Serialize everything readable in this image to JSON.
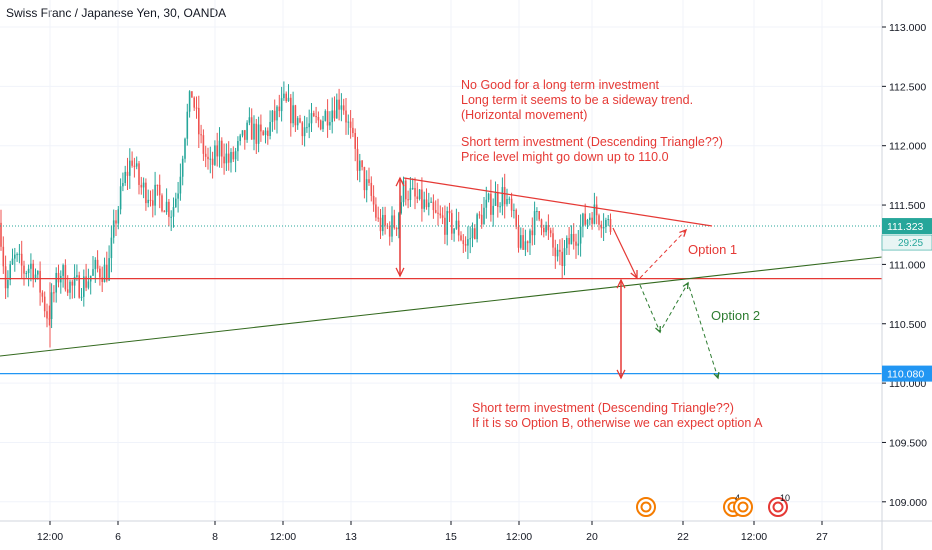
{
  "chart_data": {
    "type": "candlestick",
    "title": "Swiss Franc / Japanese Yen, 30, OANDA",
    "ylim": [
      108.9,
      113.15
    ],
    "y_ticks": [
      "113.000",
      "112.500",
      "112.000",
      "111.500",
      "111.000",
      "110.500",
      "110.000",
      "109.500",
      "109.000"
    ],
    "x_ticks": [
      "12:00",
      "6",
      "8",
      "12:00",
      "13",
      "15",
      "12:00",
      "20",
      "22",
      "12:00",
      "27"
    ],
    "price_labels": {
      "current": {
        "value": 111.323,
        "text": "111.323",
        "color": "#26a69a"
      },
      "countdown": {
        "text": "29:25",
        "color": "#26a69a"
      },
      "target": {
        "value": 110.08,
        "text": "110.080",
        "color": "#2196f3"
      }
    },
    "horizontal_lines": [
      {
        "name": "support",
        "value": 110.88,
        "color": "#e53935"
      },
      {
        "name": "target",
        "value": 110.08,
        "color": "#2196f3"
      },
      {
        "name": "current",
        "value": 111.323,
        "color": "#26a69a",
        "style": "dotted"
      }
    ],
    "annotations": {
      "top_block": [
        "No Good for a long term investment",
        "Long term it seems to be a sideway trend.",
        "(Horizontal movement)",
        "",
        "Short term investment (Descending Triangle??)",
        "Price level might go down up to 110.0"
      ],
      "bottom_block": [
        "Short term investment (Descending Triangle??)",
        "If it is so Option B, otherwise we can expect option A"
      ],
      "option1": "Option 1",
      "option2": "Option 2"
    },
    "event_markers": [
      {
        "label": "",
        "color": "#f57c00"
      },
      {
        "label": "4",
        "color": "#f57c00"
      },
      {
        "label": "10",
        "color": "#e53935"
      }
    ],
    "colors": {
      "up": "#26a69a",
      "down": "#ef5350"
    }
  }
}
